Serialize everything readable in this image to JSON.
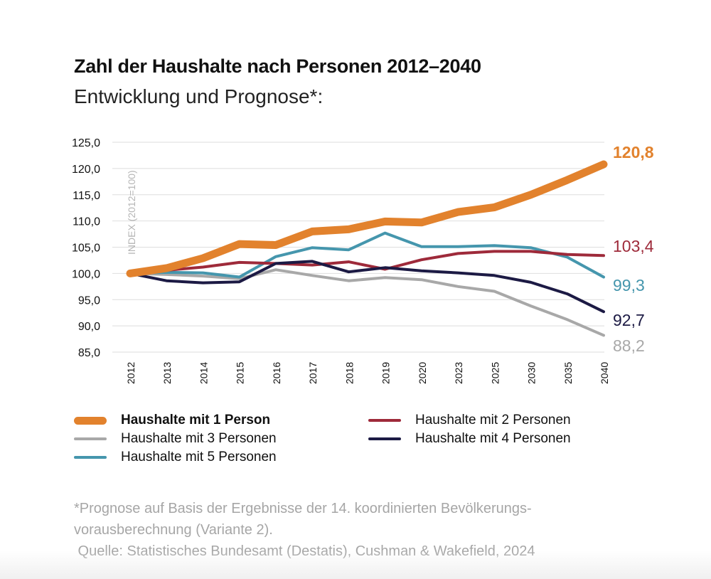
{
  "title": "Zahl der Haushalte nach Personen 2012–2040",
  "subtitle": "Entwicklung und Prognose*:",
  "footnote": {
    "line1": "*Prognose auf Basis der Ergebnisse der 14. koordinierten Bevölkerungs-",
    "line2": "vorausberechnung (Variante 2).",
    "line3": " Quelle: Statistisches Bundesamt (Destatis), Cushman & Wakefield, 2024"
  },
  "chart_data": {
    "type": "line",
    "title": "Zahl der Haushalte nach Personen 2012–2040",
    "subtitle": "Entwicklung und Prognose*:",
    "xlabel": "",
    "ylabel": "INDEX (2012=100)",
    "ylim": [
      85,
      125
    ],
    "y_ticks": [
      "125,0",
      "120,0",
      "115,0",
      "110,0",
      "105,0",
      "100,0",
      "95,0",
      "90,0",
      "85,0"
    ],
    "y_tick_values": [
      125,
      120,
      115,
      110,
      105,
      100,
      95,
      90,
      85
    ],
    "grid": true,
    "legend_position": "bottom",
    "x": [
      "2012",
      "2013",
      "2014",
      "2015",
      "2016",
      "2017",
      "2018",
      "2019",
      "2020",
      "2023",
      "2025",
      "2030",
      "2035",
      "2040"
    ],
    "series": [
      {
        "name": "Haushalte mit 1 Person",
        "color": "#e2822d",
        "bold": true,
        "end_label": "120,8",
        "values": [
          100.0,
          101.0,
          102.9,
          105.6,
          105.4,
          108.0,
          108.4,
          109.9,
          109.7,
          111.7,
          112.6,
          115.0,
          117.8,
          120.8
        ]
      },
      {
        "name": "Haushalte mit 2 Personen",
        "color": "#9e2a3a",
        "bold": false,
        "end_label": "103,4",
        "values": [
          100.0,
          100.6,
          101.2,
          102.1,
          101.9,
          101.6,
          102.2,
          100.8,
          102.6,
          103.8,
          104.2,
          104.2,
          103.6,
          103.4
        ]
      },
      {
        "name": "Haushalte mit 3 Personen",
        "color": "#a8a8a8",
        "bold": false,
        "end_label": "88,2",
        "values": [
          100.0,
          99.8,
          99.5,
          99.0,
          100.7,
          99.6,
          98.6,
          99.2,
          98.8,
          97.5,
          96.6,
          93.8,
          91.2,
          88.2
        ]
      },
      {
        "name": "Haushalte mit 4 Personen",
        "color": "#1c1a44",
        "bold": false,
        "end_label": "92,7",
        "values": [
          100.0,
          98.6,
          98.2,
          98.4,
          101.9,
          102.3,
          100.3,
          101.1,
          100.5,
          100.1,
          99.6,
          98.3,
          96.1,
          92.7
        ]
      },
      {
        "name": "Haushalte mit 5 Personen",
        "color": "#4596ad",
        "bold": false,
        "end_label": "99,3",
        "values": [
          100.0,
          100.2,
          100.1,
          99.3,
          103.2,
          104.9,
          104.5,
          107.7,
          105.1,
          105.1,
          105.3,
          104.9,
          103.1,
          99.3
        ]
      }
    ],
    "legend": [
      {
        "series_index": 0,
        "label": "Haushalte mit 1 Person"
      },
      {
        "series_index": 1,
        "label": "Haushalte mit 2 Personen"
      },
      {
        "series_index": 2,
        "label": "Haushalte mit 3 Personen"
      },
      {
        "series_index": 3,
        "label": "Haushalte mit 4 Personen"
      },
      {
        "series_index": 4,
        "label": "Haushalte mit 5 Personen"
      }
    ]
  }
}
